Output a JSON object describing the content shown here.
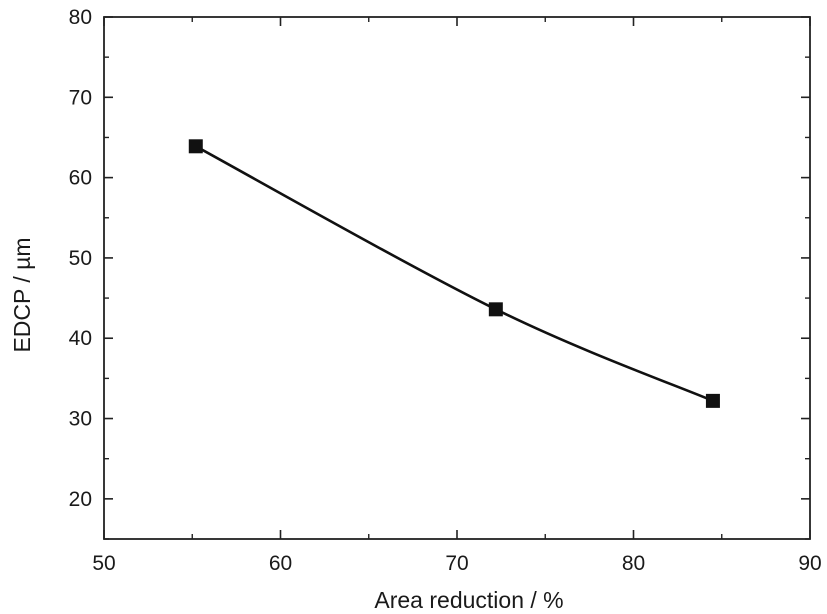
{
  "chart_data": {
    "type": "line",
    "title": "",
    "xlabel": "Area reduction / %",
    "ylabel": "EDCP / µm",
    "xlim": [
      50,
      90
    ],
    "ylim": [
      15,
      80
    ],
    "x_ticks": [
      50,
      60,
      70,
      80,
      90
    ],
    "y_ticks": [
      20,
      30,
      40,
      50,
      60,
      70,
      80
    ],
    "x_tick_labels": [
      "50",
      "60",
      "70",
      "80",
      "90"
    ],
    "y_tick_labels": [
      "20",
      "30",
      "40",
      "50",
      "60",
      "70",
      "80"
    ],
    "grid": false,
    "legend": "none",
    "marker": "square",
    "line_style": "smooth",
    "series": [
      {
        "x": [
          55.2,
          72.2,
          84.5
        ],
        "y": [
          63.9,
          43.6,
          32.2
        ]
      }
    ],
    "colors": {
      "line": "#111111",
      "marker": "#111111",
      "axis": "#222222",
      "text": "#1a1a1a"
    }
  }
}
